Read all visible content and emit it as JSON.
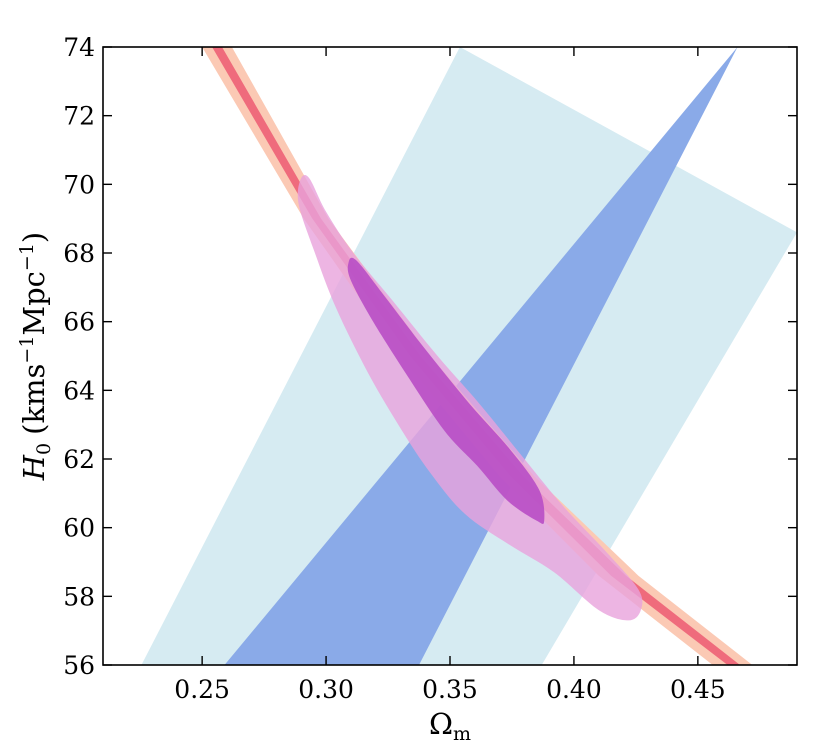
{
  "chart_data": {
    "type": "area",
    "xlabel": "Ω",
    "xlabel_sub": "m",
    "ylabel_main": "H",
    "ylabel_sub": "0",
    "ylabel_units_a": "(kms",
    "ylabel_sup_a": "−1",
    "ylabel_units_b": "Mpc",
    "ylabel_sup_b": "−1",
    "ylabel_units_c": ")",
    "xlim": [
      0.21,
      0.49
    ],
    "ylim": [
      56,
      74
    ],
    "xticks": [
      0.25,
      0.3,
      0.35,
      0.4,
      0.45
    ],
    "xtick_labels": [
      "0.25",
      "0.30",
      "0.35",
      "0.40",
      "0.45"
    ],
    "yticks": [
      56,
      58,
      60,
      62,
      64,
      66,
      68,
      70,
      72,
      74
    ],
    "ytick_labels": [
      "56",
      "58",
      "60",
      "62",
      "64",
      "66",
      "68",
      "70",
      "72",
      "74"
    ],
    "grid": false,
    "legend": "none",
    "series": [
      {
        "kind": "band",
        "color": "#d6ebf2",
        "left": [
          [
            0.2255,
            56
          ],
          [
            0.354,
            74
          ]
        ],
        "right": [
          [
            0.387,
            56
          ],
          [
            0.49,
            68.6
          ]
        ]
      },
      {
        "kind": "band",
        "color": "#8aaae8",
        "left": [
          [
            0.259,
            56
          ],
          [
            0.466,
            74
          ]
        ],
        "right": [
          [
            0.3375,
            56
          ],
          [
            0.466,
            74
          ]
        ]
      },
      {
        "kind": "band",
        "color": "#fbc9b4",
        "left": [
          [
            0.25,
            74
          ],
          [
            0.291,
            69
          ],
          [
            0.33,
            65
          ],
          [
            0.37,
            61.5
          ],
          [
            0.41,
            58.6
          ],
          [
            0.456,
            56
          ]
        ],
        "right": [
          [
            0.262,
            74
          ],
          [
            0.301,
            69
          ],
          [
            0.342,
            65
          ],
          [
            0.384,
            61.5
          ],
          [
            0.426,
            58.6
          ],
          [
            0.472,
            56
          ]
        ]
      },
      {
        "kind": "band",
        "color": "#ef6b7c",
        "left": [
          [
            0.254,
            74
          ],
          [
            0.2945,
            69
          ],
          [
            0.334,
            65
          ],
          [
            0.3745,
            61.5
          ],
          [
            0.415,
            58.6
          ],
          [
            0.462,
            56
          ]
        ],
        "right": [
          [
            0.258,
            74
          ],
          [
            0.298,
            69
          ],
          [
            0.338,
            65
          ],
          [
            0.3795,
            61.5
          ],
          [
            0.421,
            58.6
          ],
          [
            0.467,
            56
          ]
        ]
      },
      {
        "kind": "contour",
        "color": "#e9a3dc",
        "opacity": 0.8,
        "points": [
          [
            0.2895,
            70.1
          ],
          [
            0.293,
            70.2
          ],
          [
            0.3,
            69.2
          ],
          [
            0.311,
            68.0
          ],
          [
            0.327,
            66.6
          ],
          [
            0.345,
            65.0
          ],
          [
            0.362,
            63.6
          ],
          [
            0.38,
            62.0
          ],
          [
            0.396,
            60.6
          ],
          [
            0.413,
            59.3
          ],
          [
            0.426,
            58.2
          ],
          [
            0.427,
            57.6
          ],
          [
            0.422,
            57.3
          ],
          [
            0.41,
            57.6
          ],
          [
            0.392,
            58.7
          ],
          [
            0.374,
            59.5
          ],
          [
            0.356,
            60.4
          ],
          [
            0.342,
            61.6
          ],
          [
            0.33,
            62.9
          ],
          [
            0.317,
            64.5
          ],
          [
            0.304,
            66.4
          ],
          [
            0.295,
            68.1
          ],
          [
            0.289,
            69.4
          ]
        ]
      },
      {
        "kind": "contour",
        "color": "#b84ec5",
        "opacity": 0.9,
        "points": [
          [
            0.309,
            67.7
          ],
          [
            0.312,
            67.8
          ],
          [
            0.323,
            66.8
          ],
          [
            0.34,
            65.2
          ],
          [
            0.358,
            63.6
          ],
          [
            0.374,
            62.3
          ],
          [
            0.386,
            61.1
          ],
          [
            0.388,
            60.2
          ],
          [
            0.385,
            60.2
          ],
          [
            0.373,
            60.8
          ],
          [
            0.361,
            61.8
          ],
          [
            0.348,
            62.8
          ],
          [
            0.333,
            64.4
          ],
          [
            0.319,
            66.0
          ],
          [
            0.31,
            67.2
          ]
        ]
      }
    ]
  }
}
